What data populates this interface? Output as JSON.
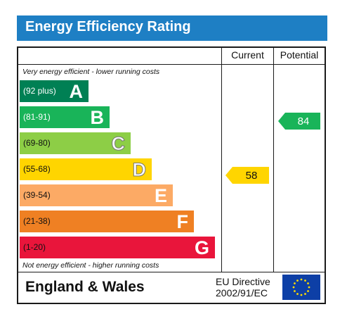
{
  "title": "Energy Efficiency Rating",
  "columns": {
    "current": "Current",
    "potential": "Potential"
  },
  "notes": {
    "top": "Very energy efficient - lower running costs",
    "bottom": "Not energy efficient - higher running costs"
  },
  "bands": [
    {
      "range": "(92 plus)",
      "letter": "A",
      "color": "#008054",
      "range_color": "#ffffff"
    },
    {
      "range": "(81-91)",
      "letter": "B",
      "color": "#19b459",
      "range_color": "#ffffff"
    },
    {
      "range": "(69-80)",
      "letter": "C",
      "color": "#8dce46",
      "range_color": "#111111"
    },
    {
      "range": "(55-68)",
      "letter": "D",
      "color": "#ffd500",
      "range_color": "#111111"
    },
    {
      "range": "(39-54)",
      "letter": "E",
      "color": "#fcaa65",
      "range_color": "#111111"
    },
    {
      "range": "(21-38)",
      "letter": "F",
      "color": "#ef8023",
      "range_color": "#111111"
    },
    {
      "range": "(1-20)",
      "letter": "G",
      "color": "#e9153b",
      "range_color": "#111111"
    }
  ],
  "current_rating": {
    "value": "58",
    "band": "D",
    "color": "#ffd500"
  },
  "potential_rating": {
    "value": "84",
    "band": "B",
    "color": "#19b459"
  },
  "footer": {
    "region": "England & Wales",
    "directive_line1": "EU Directive",
    "directive_line2": "2002/91/EC"
  },
  "flag_icon": "eu-flag-icon"
}
